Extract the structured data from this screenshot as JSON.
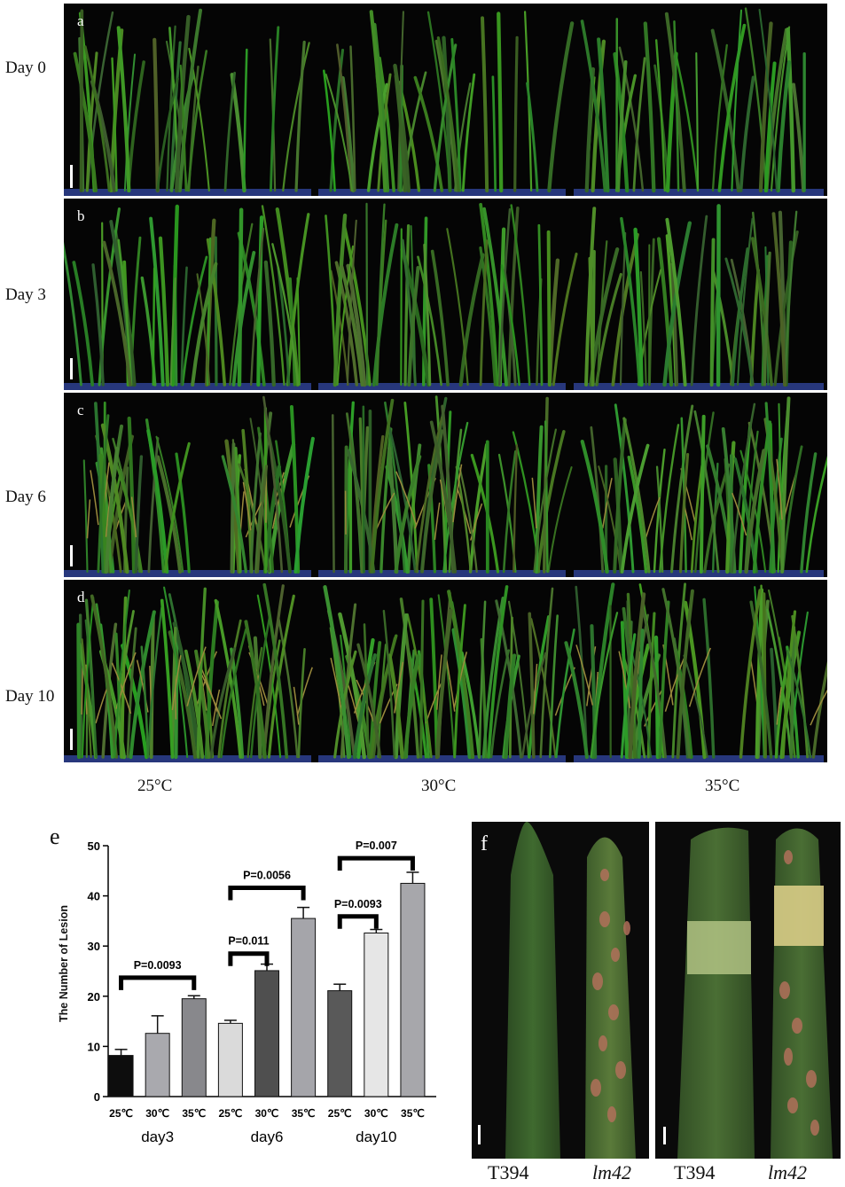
{
  "figure": {
    "rows": [
      {
        "label": "Day 0",
        "letter": "a"
      },
      {
        "label": "Day 3",
        "letter": "b"
      },
      {
        "label": "Day 6",
        "letter": "c"
      },
      {
        "label": "Day 10",
        "letter": "d"
      }
    ],
    "temps": [
      "25°C",
      "30°C",
      "35°C"
    ],
    "chart_letter": "e",
    "leaf_letter": "f",
    "leaf_captions": [
      "T394",
      "lm42",
      "T394",
      "lm42"
    ]
  },
  "chart_data": {
    "type": "bar",
    "title": "",
    "xlabel": "",
    "ylabel": "The Number of Lesion",
    "ylim": [
      0,
      50
    ],
    "yticks": [
      0,
      10,
      20,
      30,
      40,
      50
    ],
    "categories": [
      "25℃",
      "30℃",
      "35℃",
      "25℃",
      "30℃",
      "35℃",
      "25℃",
      "30℃",
      "35℃"
    ],
    "groups": [
      "day3",
      "day6",
      "day10"
    ],
    "values": [
      8.2,
      12.6,
      19.5,
      14.6,
      25.1,
      35.5,
      21.1,
      32.6,
      42.5
    ],
    "errors": [
      1.2,
      3.5,
      0.6,
      0.6,
      1.3,
      2.2,
      1.3,
      0.7,
      2.2
    ],
    "bar_colors": [
      "#0d0d0d",
      "#a9a9ae",
      "#88888c",
      "#dadada",
      "#4f4f4f",
      "#a5a5aa",
      "#595959",
      "#e6e6e6",
      "#a7a7ab"
    ],
    "annotations": [
      {
        "text": "P=0.0093",
        "from": 0,
        "to": 2,
        "y": 23.7
      },
      {
        "text": "P=0.011",
        "from": 3,
        "to": 4,
        "y": 28.5
      },
      {
        "text": "P=0.0056",
        "from": 3,
        "to": 5,
        "y": 41.6
      },
      {
        "text": "P=0.0093",
        "from": 6,
        "to": 7,
        "y": 35.9
      },
      {
        "text": "P=0.007",
        "from": 6,
        "to": 8,
        "y": 47.5
      }
    ]
  }
}
